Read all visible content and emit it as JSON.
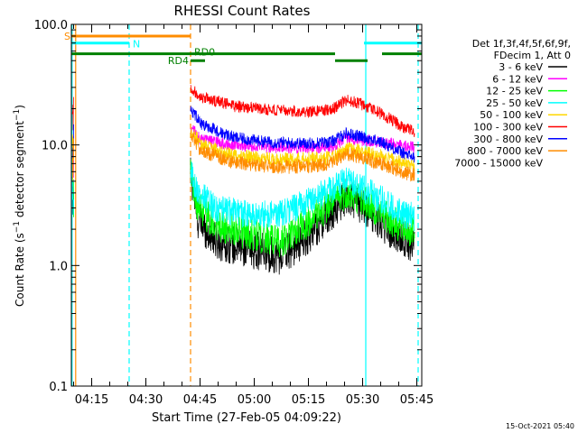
{
  "chart_data": {
    "type": "line",
    "title": "RHESSI Count Rates",
    "xlabel": "Start Time (27-Feb-05 04:09:22)",
    "ylabel": "Count Rate (s⁻¹ detector segment⁻¹)",
    "ylabel_parts": {
      "base": "Count Rate (s",
      "exp1": "−1",
      "mid": " detector segment",
      "exp2": "−1",
      "end": ")"
    },
    "yscale": "log",
    "ylim": [
      0.1,
      100
    ],
    "xlim_minutes": [
      0,
      97
    ],
    "x_tick_minutes": [
      5.63,
      20.63,
      35.63,
      50.63,
      65.63,
      80.63,
      95.63
    ],
    "x_tick_labels": [
      "04:15",
      "04:30",
      "04:45",
      "05:00",
      "05:15",
      "05:30",
      "05:45"
    ],
    "y_ticks": [
      0.1,
      1.0,
      10.0,
      100.0
    ],
    "y_tick_labels": [
      "0.1",
      "1.0",
      "10.0",
      "100.0"
    ],
    "data_gap_minutes": [
      3,
      33
    ],
    "legend_header": [
      "Det 1f,3f,4f,5f,6f,9f,",
      "FDecim 1, Att 0"
    ],
    "series": [
      {
        "name": "3 - 6 keV",
        "color": "#000000",
        "values": [
          [
            33,
            6.0
          ],
          [
            35,
            2.4
          ],
          [
            40,
            1.6
          ],
          [
            50,
            1.35
          ],
          [
            58,
            1.2
          ],
          [
            65,
            1.7
          ],
          [
            72,
            2.8
          ],
          [
            76,
            3.8
          ],
          [
            80,
            3.2
          ],
          [
            84,
            2.6
          ],
          [
            88,
            2.0
          ],
          [
            92,
            1.7
          ],
          [
            95,
            1.5
          ]
        ]
      },
      {
        "name": "6 - 12 keV",
        "color": "#ff00ff",
        "values": [
          [
            33,
            14.0
          ],
          [
            36,
            11.0
          ],
          [
            45,
            10.0
          ],
          [
            55,
            9.5
          ],
          [
            65,
            9.5
          ],
          [
            72,
            9.6
          ],
          [
            76,
            11.5
          ],
          [
            80,
            11.0
          ],
          [
            86,
            10.5
          ],
          [
            92,
            9.8
          ],
          [
            95,
            9.5
          ]
        ]
      },
      {
        "name": "12 - 25 keV",
        "color": "#00ff00",
        "values": [
          [
            33,
            5.5
          ],
          [
            35,
            3.0
          ],
          [
            40,
            2.2
          ],
          [
            50,
            1.8
          ],
          [
            58,
            1.6
          ],
          [
            65,
            2.2
          ],
          [
            72,
            3.3
          ],
          [
            76,
            4.0
          ],
          [
            80,
            3.6
          ],
          [
            84,
            3.0
          ],
          [
            88,
            2.4
          ],
          [
            92,
            2.0
          ],
          [
            95,
            1.9
          ]
        ]
      },
      {
        "name": "25 - 50 keV",
        "color": "#00ffff",
        "values": [
          [
            33,
            6.0
          ],
          [
            35,
            4.0
          ],
          [
            40,
            3.0
          ],
          [
            50,
            2.6
          ],
          [
            58,
            2.7
          ],
          [
            65,
            3.3
          ],
          [
            72,
            4.3
          ],
          [
            76,
            5.0
          ],
          [
            80,
            4.4
          ],
          [
            84,
            3.8
          ],
          [
            88,
            3.2
          ],
          [
            92,
            2.7
          ],
          [
            95,
            2.5
          ]
        ]
      },
      {
        "name": "50 - 100 keV",
        "color": "#ffd700",
        "values": [
          [
            33,
            13.0
          ],
          [
            36,
            10.0
          ],
          [
            45,
            8.2
          ],
          [
            55,
            7.6
          ],
          [
            65,
            7.6
          ],
          [
            72,
            7.8
          ],
          [
            76,
            9.3
          ],
          [
            80,
            8.8
          ],
          [
            86,
            8.0
          ],
          [
            92,
            7.0
          ],
          [
            95,
            6.6
          ]
        ]
      },
      {
        "name": "100 - 300 keV",
        "color": "#ff0000",
        "values": [
          [
            33,
            30.0
          ],
          [
            36,
            25.0
          ],
          [
            45,
            21.0
          ],
          [
            55,
            19.5
          ],
          [
            65,
            19.0
          ],
          [
            72,
            19.5
          ],
          [
            76,
            23.5
          ],
          [
            80,
            22.0
          ],
          [
            86,
            18.0
          ],
          [
            92,
            14.0
          ],
          [
            95,
            13.0
          ]
        ]
      },
      {
        "name": "300 - 800 keV",
        "color": "#0000ff",
        "values": [
          [
            33,
            20.0
          ],
          [
            36,
            15.0
          ],
          [
            45,
            11.5
          ],
          [
            55,
            10.5
          ],
          [
            65,
            10.3
          ],
          [
            72,
            10.6
          ],
          [
            76,
            12.5
          ],
          [
            80,
            11.8
          ],
          [
            86,
            10.5
          ],
          [
            92,
            8.5
          ],
          [
            95,
            7.8
          ]
        ]
      },
      {
        "name": "800 - 7000 keV",
        "color": "#ff8c00",
        "values": [
          [
            33,
            12.0
          ],
          [
            36,
            9.0
          ],
          [
            45,
            7.2
          ],
          [
            55,
            6.6
          ],
          [
            65,
            6.6
          ],
          [
            72,
            7.0
          ],
          [
            76,
            8.4
          ],
          [
            80,
            7.9
          ],
          [
            86,
            7.0
          ],
          [
            92,
            5.9
          ],
          [
            95,
            5.6
          ]
        ]
      },
      {
        "name": "7000 - 15000 keV",
        "color": "#ffffff",
        "values": []
      }
    ],
    "annotations": [
      {
        "label": "S",
        "color": "#ff8c00",
        "x_start": 0,
        "x_end": 33,
        "y": 80
      },
      {
        "label": "N",
        "color": "#00ffff",
        "x_start": 0,
        "x_end": 16,
        "y": 70
      },
      {
        "label": "",
        "color": "#00ffff",
        "x_start": 81,
        "x_end": 97,
        "y": 70
      },
      {
        "label": "RD0",
        "color": "#008000",
        "x_start": 0,
        "x_end": 73,
        "y": 57
      },
      {
        "label": "",
        "color": "#008000",
        "x_start": 86,
        "x_end": 97,
        "y": 57
      },
      {
        "label": "RD4",
        "color": "#008000",
        "x_start": 33,
        "x_end": 37,
        "y": 50
      },
      {
        "label": "",
        "color": "#008000",
        "x_start": 73,
        "x_end": 82,
        "y": 50
      }
    ],
    "vertical_lines": [
      {
        "x": 0.2,
        "color": "#00ffff",
        "style": "solid"
      },
      {
        "x": 1.2,
        "color": "#ff8c00",
        "style": "solid"
      },
      {
        "x": 16.0,
        "color": "#00ffff",
        "style": "dashed"
      },
      {
        "x": 33.0,
        "color": "#ff8c00",
        "style": "dashed"
      },
      {
        "x": 81.5,
        "color": "#00ffff",
        "style": "solid"
      },
      {
        "x": 96.0,
        "color": "#00ffff",
        "style": "dashed"
      }
    ]
  },
  "footer_date": "15-Oct-2021 05:40"
}
